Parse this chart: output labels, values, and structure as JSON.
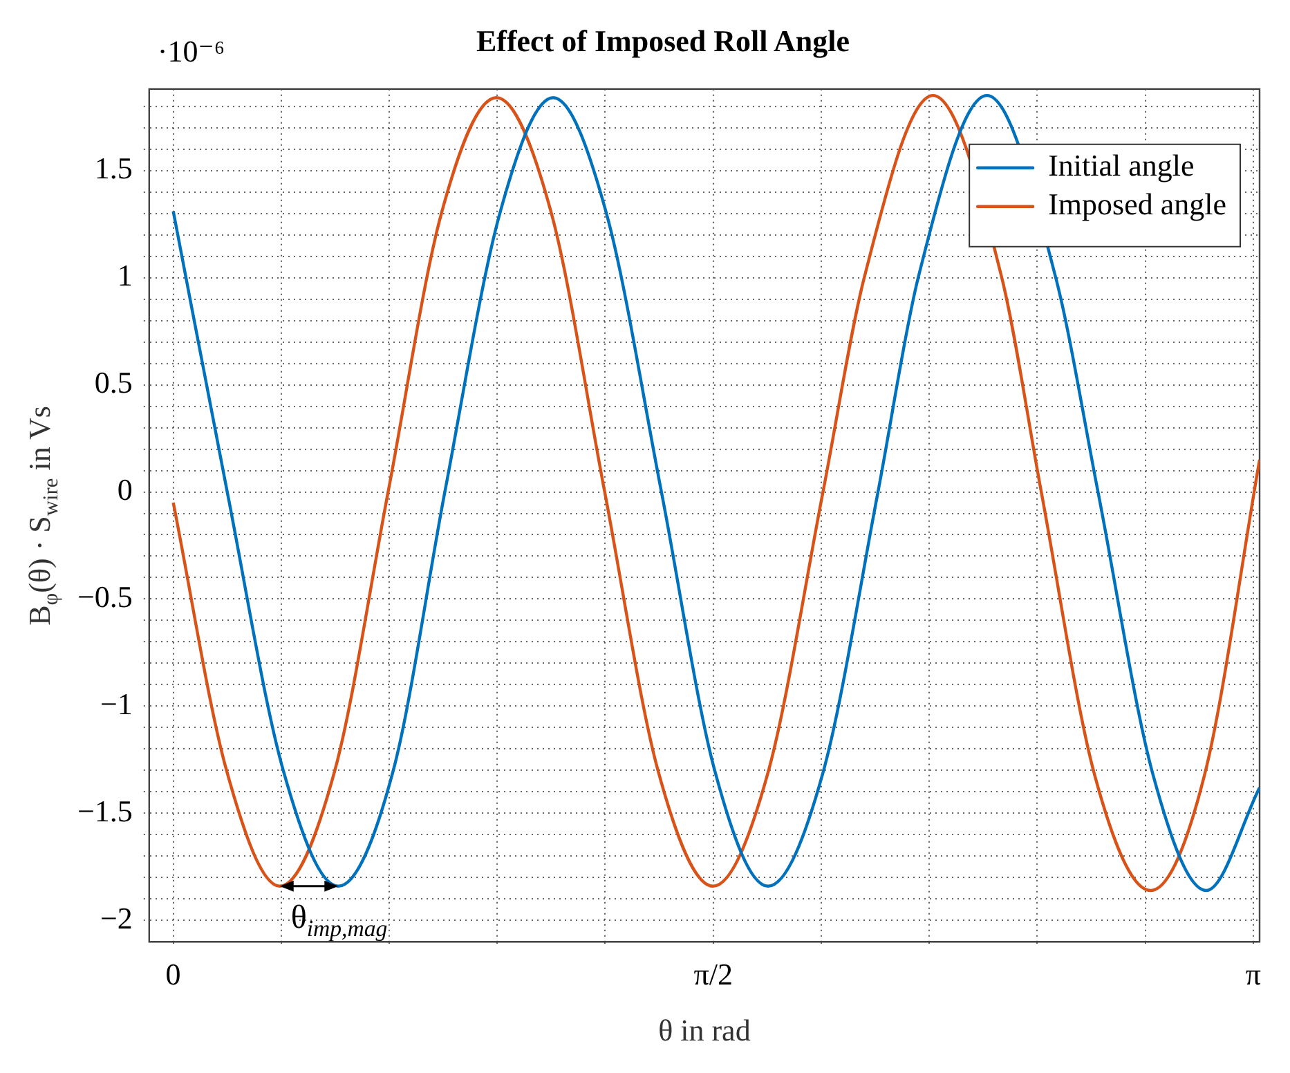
{
  "chart_data": {
    "type": "line",
    "title": "Effect of Imposed Roll Angle",
    "xlabel": "θ in rad",
    "ylabel": "B$_{φ}$(θ) · S$_{wire}$ in Vs",
    "annotations": [
      "·10⁻⁶",
      {
        "text": "θ$_{imp,mag}$",
        "x": 0.31,
        "y": -1.84
      }
    ],
    "series": [
      {
        "name": "Initial angle",
        "color": "#0072bd",
        "x": [
          0,
          0.157,
          0.32,
          0.48,
          0.64,
          0.79,
          0.95,
          1.105,
          1.26,
          1.42,
          1.575,
          1.73,
          1.89,
          2.05,
          2.167,
          2.367,
          2.567,
          2.69,
          2.85,
          3.005,
          3.16
        ],
        "values": [
          1.31,
          0,
          -1.3,
          -1.84,
          -1.3,
          0,
          1.3,
          1.84,
          1.3,
          0,
          -1.3,
          -1.84,
          -1.31,
          0,
          1.0,
          1.85,
          1.0,
          0,
          -1.32,
          -1.86,
          -1.38
        ]
      },
      {
        "name": "Imposed angle",
        "color": "#d95319",
        "x": [
          0,
          0.155,
          0.31,
          0.47,
          0.625,
          0.78,
          0.94,
          1.1,
          1.255,
          1.41,
          1.57,
          1.73,
          1.89,
          2.01,
          2.21,
          2.41,
          2.525,
          2.68,
          2.843,
          3.0,
          3.16
        ],
        "values": [
          -0.05,
          -1.3,
          -1.84,
          -1.3,
          0,
          1.3,
          1.84,
          1.3,
          0,
          -1.3,
          -1.84,
          -1.31,
          0,
          1.0,
          1.85,
          1.0,
          0,
          -1.32,
          -1.86,
          -1.32,
          0.15
        ]
      }
    ],
    "xlim": [
      -0.07,
      3.16
    ],
    "ylim": [
      -2.1,
      1.88
    ],
    "xticks": [
      {
        "value": 0,
        "label": "0"
      },
      {
        "value": 0.3142,
        "label": null
      },
      {
        "value": 0.6283,
        "label": null
      },
      {
        "value": 0.9425,
        "label": null
      },
      {
        "value": 1.2566,
        "label": null
      },
      {
        "value": 1.5708,
        "label": "π/2"
      },
      {
        "value": 1.885,
        "label": null
      },
      {
        "value": 2.1991,
        "label": null
      },
      {
        "value": 2.5133,
        "label": null
      },
      {
        "value": 2.8274,
        "label": null
      },
      {
        "value": 3.1416,
        "label": "π"
      }
    ],
    "yticks": [
      {
        "value": -2,
        "label": "−2"
      },
      {
        "value": -1.9,
        "label": null
      },
      {
        "value": -1.8,
        "label": null
      },
      {
        "value": -1.7,
        "label": null
      },
      {
        "value": -1.6,
        "label": null
      },
      {
        "value": -1.5,
        "label": "−1.5"
      },
      {
        "value": -1.4,
        "label": null
      },
      {
        "value": -1.3,
        "label": null
      },
      {
        "value": -1.2,
        "label": null
      },
      {
        "value": -1.1,
        "label": null
      },
      {
        "value": -1,
        "label": "−1"
      },
      {
        "value": -0.9,
        "label": null
      },
      {
        "value": -0.8,
        "label": null
      },
      {
        "value": -0.7,
        "label": null
      },
      {
        "value": -0.6,
        "label": null
      },
      {
        "value": -0.5,
        "label": "−0.5"
      },
      {
        "value": -0.4,
        "label": null
      },
      {
        "value": -0.3,
        "label": null
      },
      {
        "value": -0.2,
        "label": null
      },
      {
        "value": -0.1,
        "label": null
      },
      {
        "value": 0,
        "label": "0"
      },
      {
        "value": 0.1,
        "label": null
      },
      {
        "value": 0.2,
        "label": null
      },
      {
        "value": 0.3,
        "label": null
      },
      {
        "value": 0.4,
        "label": null
      },
      {
        "value": 0.5,
        "label": "0.5"
      },
      {
        "value": 0.6,
        "label": null
      },
      {
        "value": 0.7,
        "label": null
      },
      {
        "value": 0.8,
        "label": null
      },
      {
        "value": 0.9,
        "label": null
      },
      {
        "value": 1,
        "label": "1"
      },
      {
        "value": 1.1,
        "label": null
      },
      {
        "value": 1.2,
        "label": null
      },
      {
        "value": 1.3,
        "label": null
      },
      {
        "value": 1.4,
        "label": null
      },
      {
        "value": 1.5,
        "label": "1.5"
      },
      {
        "value": 1.6,
        "label": null
      },
      {
        "value": 1.7,
        "label": null
      },
      {
        "value": 1.8,
        "label": null
      }
    ],
    "grid": true,
    "legend": "top right",
    "marker": "none",
    "line_style": "solid"
  }
}
